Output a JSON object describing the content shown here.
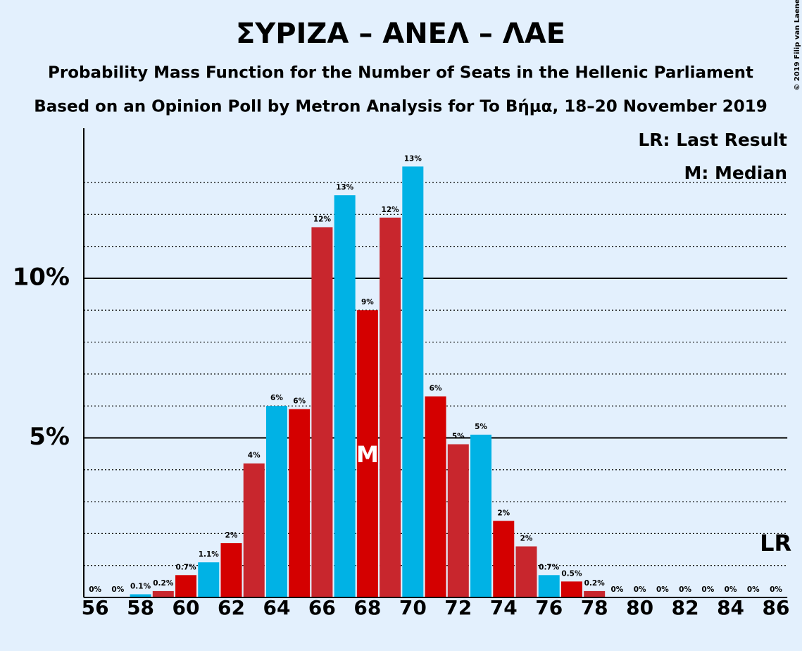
{
  "chart_data": {
    "type": "bar",
    "title": "ΣΥΡΙΖΑ – ΑΝΕΛ – ΛΑΕ",
    "subtitle": "Probability Mass Function for the Number of Seats in the Hellenic Parliament",
    "subtitle2": "Based on an Opinion Poll by Metron Analysis for To Βήμα, 18–20 November 2019",
    "copyright": "© 2019 Filip van Laenen",
    "legend": [
      "LR: Last Result",
      "M: Median"
    ],
    "categories": [
      56,
      null,
      58,
      null,
      60,
      null,
      62,
      null,
      64,
      null,
      66,
      null,
      68,
      null,
      70,
      null,
      72,
      null,
      74,
      null,
      76,
      null,
      78,
      null,
      80,
      null,
      82,
      null,
      84,
      null,
      86
    ],
    "values": [
      0,
      0,
      0.1,
      0.2,
      0.7,
      1.1,
      1.7,
      4.2,
      6.0,
      5.9,
      11.6,
      12.6,
      9.0,
      11.9,
      13.5,
      6.3,
      4.8,
      5.1,
      2.4,
      1.6,
      0.7,
      0.5,
      0.2,
      0,
      0,
      0,
      0,
      0,
      0,
      0,
      0
    ],
    "value_labels": [
      "0%",
      "0%",
      "0.1%",
      "0.2%",
      "0.7%",
      "1.1%",
      "2%",
      "4%",
      "6%",
      "6%",
      "12%",
      "13%",
      "9%",
      "12%",
      "13%",
      "6%",
      "5%",
      "5%",
      "2%",
      "2%",
      "0.7%",
      "0.5%",
      "0.2%",
      "0%",
      "0%",
      "0%",
      "0%",
      "0%",
      "0%",
      "0%",
      "0%"
    ],
    "colors": [
      "#c8262d",
      "#d40000",
      "#00b2e5",
      "#c8262d",
      "#d40000",
      "#00b2e5",
      "#d40000",
      "#c8262d",
      "#00b2e5",
      "#d40000",
      "#c8262d",
      "#00b2e5",
      "#d40000",
      "#c8262d",
      "#00b2e5",
      "#d40000",
      "#c8262d",
      "#00b2e5",
      "#d40000",
      "#c8262d",
      "#00b2e5",
      "#d40000",
      "#c8262d",
      "#00b2e5",
      "#d40000",
      "#c8262d",
      "#00b2e5",
      "#d40000",
      "#c8262d",
      "#00b2e5",
      "#d40000"
    ],
    "median": {
      "label": "M",
      "index": 12
    },
    "last_result": {
      "label": "LR"
    },
    "ylim": [
      0,
      14.7
    ],
    "yticks": [
      {
        "value": 5,
        "label": "5%"
      },
      {
        "value": 10,
        "label": "10%"
      }
    ],
    "minor_yticks": [
      1,
      2,
      3,
      4,
      6,
      7,
      8,
      9,
      11,
      12,
      13
    ]
  }
}
